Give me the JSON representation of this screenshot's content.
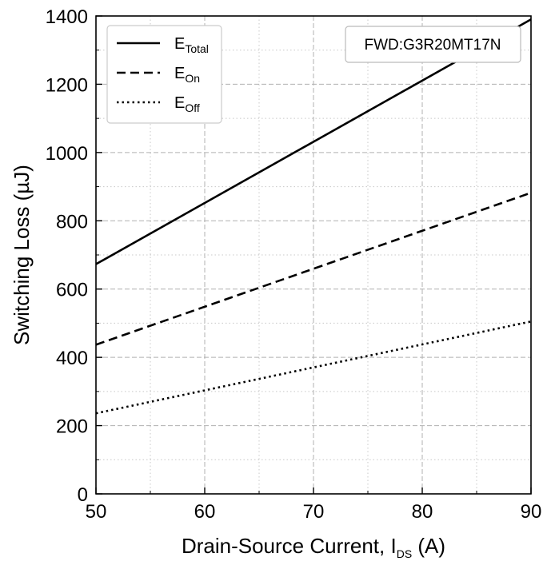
{
  "chart_data": {
    "type": "line",
    "title": "",
    "xlabel": {
      "main": "Drain-Source Current, I",
      "sub": "DS",
      "tail": " (A)"
    },
    "ylabel": "Switching Loss (µJ)",
    "xlim": [
      50,
      90
    ],
    "ylim": [
      0,
      1400
    ],
    "x_ticks": [
      50,
      60,
      70,
      80,
      90
    ],
    "y_ticks": [
      0,
      200,
      400,
      600,
      800,
      1000,
      1200,
      1400
    ],
    "x_ticks_text": [
      "50",
      "60",
      "70",
      "80",
      "90"
    ],
    "y_ticks_text": [
      "0",
      "200",
      "400",
      "600",
      "800",
      "1000",
      "1200",
      "1400"
    ],
    "grid": true,
    "legend_position": "top-left",
    "annotation": "FWD:G3R20MT17N",
    "series": [
      {
        "name": "E",
        "sub": "Total",
        "style": "solid",
        "x": [
          50,
          90
        ],
        "y": [
          673,
          1390
        ]
      },
      {
        "name": "E",
        "sub": "On",
        "style": "dashed",
        "x": [
          50,
          90
        ],
        "y": [
          437,
          882
        ]
      },
      {
        "name": "E",
        "sub": "Off",
        "style": "dotted",
        "x": [
          50,
          90
        ],
        "y": [
          236,
          505
        ]
      }
    ]
  }
}
